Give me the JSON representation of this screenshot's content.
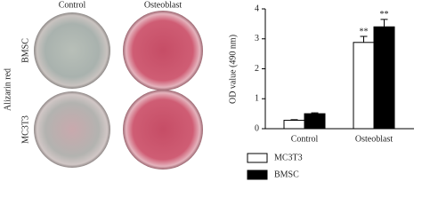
{
  "panel": {
    "column_labels": [
      "Control",
      "Osteoblast"
    ],
    "row_labels": [
      "BMSC",
      "MC3T3"
    ],
    "side_label": "Alizarin red"
  },
  "chart_data": {
    "type": "bar",
    "ylabel": "OD value (490 nm)",
    "categories": [
      "Control",
      "Osteoblast"
    ],
    "series": [
      {
        "name": "MC3T3",
        "color": "#ffffff",
        "values": [
          0.28,
          2.88
        ],
        "errors": [
          0.02,
          0.2
        ],
        "annotations": [
          null,
          "**"
        ]
      },
      {
        "name": "BMSC",
        "color": "#000000",
        "values": [
          0.5,
          3.4
        ],
        "errors": [
          0.03,
          0.25
        ],
        "annotations": [
          null,
          "**"
        ]
      }
    ],
    "ylim": [
      0,
      4
    ],
    "yticks": [
      0,
      1,
      2,
      3,
      4
    ],
    "legend": "bottom"
  }
}
